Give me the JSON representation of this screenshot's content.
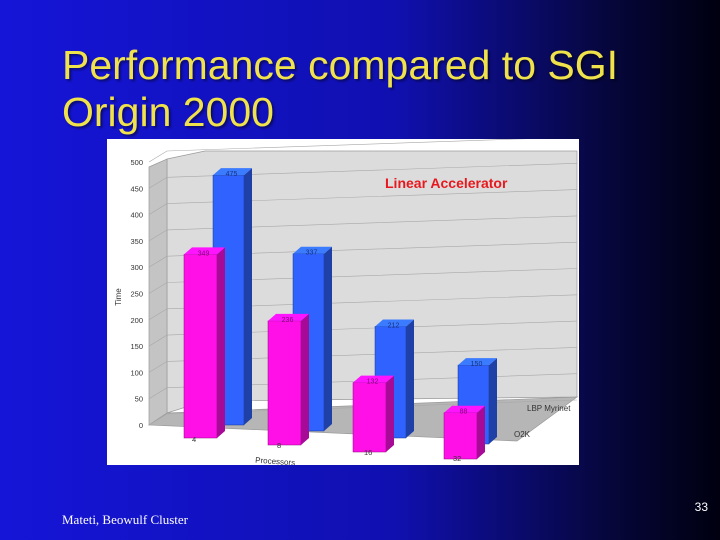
{
  "slide": {
    "title": "Performance compared to SGI Origin 2000",
    "footer": "Mateti, Beowulf Cluster",
    "page_number": "33"
  },
  "chart_data": {
    "type": "bar",
    "title": "Linear Accelerator",
    "xlabel": "Processors",
    "ylabel": "Time",
    "categories": [
      "4",
      "8",
      "16",
      "32"
    ],
    "series": [
      {
        "name": "O2K",
        "values": [
          349,
          236,
          132,
          88
        ],
        "color": "#ff10e6"
      },
      {
        "name": "LBP Myrinet",
        "values": [
          475,
          337,
          212,
          150
        ],
        "color": "#2f62ff"
      }
    ],
    "y_ticks": [
      "0",
      "50",
      "100",
      "150",
      "200",
      "250",
      "300",
      "350",
      "400",
      "450",
      "500"
    ],
    "ylim": [
      0,
      500
    ],
    "grid": true
  }
}
